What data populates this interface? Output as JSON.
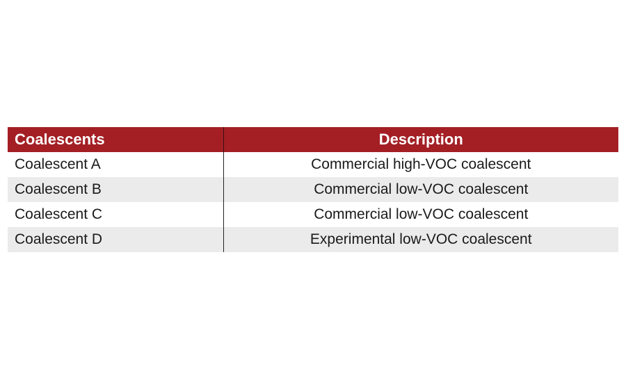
{
  "table": {
    "headers": [
      "Coalescents",
      "Description"
    ],
    "rows": [
      [
        "Coalescent A",
        "Commercial high-VOC coalescent"
      ],
      [
        "Coalescent B",
        "Commercial low-VOC coalescent"
      ],
      [
        "Coalescent C",
        "Commercial low-VOC coalescent"
      ],
      [
        "Coalescent D",
        "Experimental low-VOC coalescent"
      ]
    ]
  },
  "colors": {
    "header_background": "#a31f24",
    "header_text": "#ffffff",
    "row_shading": "#ebebeb"
  }
}
